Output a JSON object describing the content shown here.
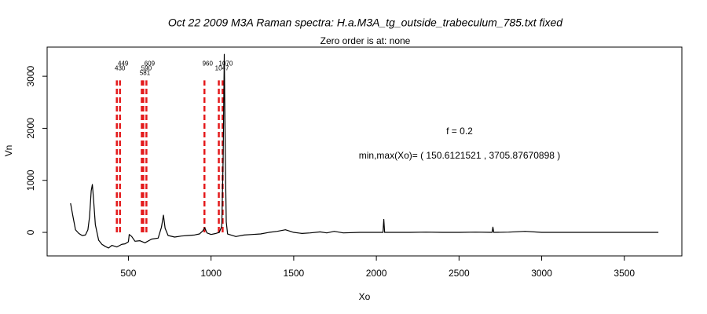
{
  "chart_data": {
    "type": "line",
    "title": "Oct 22 2009 M3A Raman spectra: H.a.M3A_tg_outside_trabeculum_785.txt fixed",
    "subtitle": "Zero order is at:  none",
    "xlabel": "Xo",
    "ylabel": "Vn",
    "annotations": [
      "f =  0.2",
      "min,max(Xo)= ( 150.6121521 , 3705.87670898 )"
    ],
    "x": [
      150,
      165,
      180,
      200,
      220,
      240,
      255,
      265,
      275,
      282,
      290,
      300,
      320,
      340,
      360,
      380,
      400,
      430,
      460,
      480,
      500,
      505,
      520,
      540,
      570,
      600,
      640,
      680,
      700,
      712,
      722,
      740,
      780,
      820,
      860,
      900,
      930,
      950,
      962,
      975,
      1000,
      1030,
      1050,
      1065,
      1073,
      1080,
      1086,
      1092,
      1100,
      1150,
      1200,
      1250,
      1300,
      1350,
      1400,
      1450,
      1500,
      1550,
      1600,
      1660,
      1700,
      1745,
      1800,
      1900,
      2000,
      2040,
      2045,
      2050,
      2100,
      2200,
      2300,
      2400,
      2500,
      2600,
      2700,
      2705,
      2710,
      2800,
      2900,
      3000,
      3200,
      3400,
      3600,
      3706
    ],
    "series": [
      {
        "color": "#000000",
        "values": [
          560,
          300,
          50,
          -20,
          -60,
          -50,
          50,
          300,
          800,
          920,
          600,
          150,
          -150,
          -230,
          -270,
          -300,
          -250,
          -280,
          -230,
          -220,
          -180,
          -40,
          -80,
          -170,
          -160,
          -200,
          -130,
          -110,
          100,
          330,
          80,
          -60,
          -90,
          -70,
          -60,
          -50,
          -30,
          30,
          90,
          -10,
          -40,
          -20,
          0,
          120,
          1400,
          3420,
          1500,
          200,
          -30,
          -80,
          -50,
          -40,
          -30,
          0,
          20,
          50,
          0,
          -20,
          -10,
          10,
          -10,
          20,
          -10,
          0,
          0,
          0,
          250,
          0,
          0,
          0,
          5,
          0,
          0,
          5,
          0,
          100,
          0,
          5,
          20,
          0,
          0,
          0,
          0,
          0
        ]
      }
    ],
    "peaks": {
      "x": [
        430,
        449,
        581,
        590,
        609,
        960,
        1047,
        1070
      ],
      "color": "#e41a1c",
      "ymin": 0,
      "ymax": 2920
    },
    "xlim": [
      8.4,
      3848
    ],
    "ylim": [
      -452,
      3560
    ],
    "xticks": [
      500,
      1000,
      1500,
      2000,
      2500,
      3000,
      3500
    ],
    "yticks": [
      0,
      1000,
      2000,
      3000
    ]
  }
}
